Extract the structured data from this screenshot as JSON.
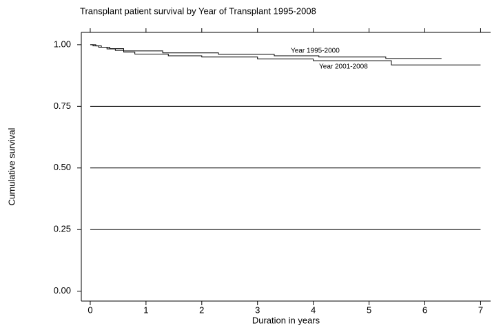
{
  "chart_data": {
    "type": "line",
    "step": true,
    "title": "Transplant patient survival by Year of Transplant 1995-2008",
    "x_label": "Duration in years",
    "y_label": "Cumulative survival",
    "xlim": [
      -0.16,
      7.18
    ],
    "ylim": [
      -0.04,
      1.05
    ],
    "xticks": [
      0,
      1,
      2,
      3,
      4,
      5,
      6,
      7
    ],
    "yticks": [
      {
        "value": 0,
        "label": "0.00"
      },
      {
        "value": 0.25,
        "label": "0.25"
      },
      {
        "value": 0.5,
        "label": "0.50"
      },
      {
        "value": 0.75,
        "label": "0.75"
      },
      {
        "value": 1,
        "label": "1.00"
      }
    ],
    "grid": true,
    "series": [
      {
        "name": "Year 1995-2000",
        "color": "#000000",
        "x": [
          0,
          0.1,
          0.2,
          0.35,
          0.6,
          1.3,
          2.3,
          3.3,
          4.1,
          5.3,
          6.3
        ],
        "values": [
          1,
          0.995,
          0.99,
          0.984,
          0.975,
          0.967,
          0.961,
          0.955,
          0.95,
          0.944,
          0.944
        ]
      },
      {
        "name": "Year 2001-2008",
        "color": "#000000",
        "x": [
          0,
          0.05,
          0.15,
          0.3,
          0.45,
          0.6,
          0.8,
          1.4,
          2.0,
          3.0,
          4.0,
          5.4,
          7.0
        ],
        "values": [
          1,
          0.995,
          0.99,
          0.983,
          0.977,
          0.97,
          0.962,
          0.955,
          0.95,
          0.942,
          0.935,
          0.918,
          0.918
        ]
      }
    ]
  }
}
